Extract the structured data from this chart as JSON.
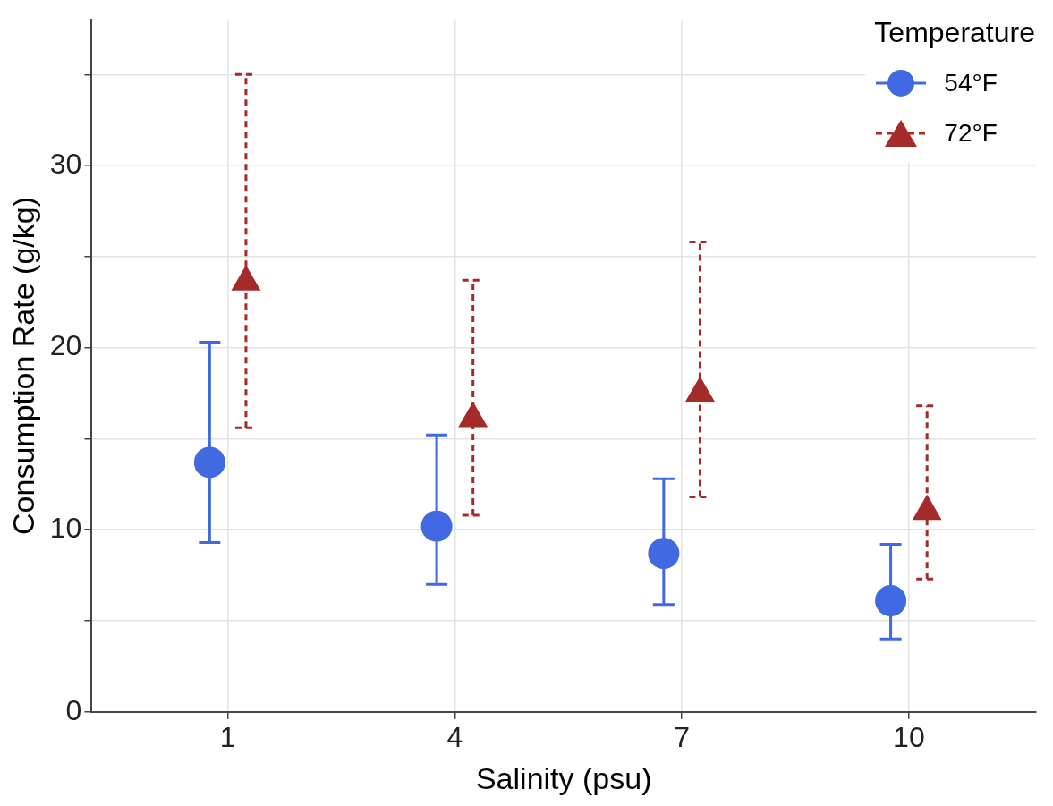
{
  "chart_data": {
    "type": "scatter",
    "xlabel": "Salinity (psu)",
    "ylabel": "Consumption Rate (g/kg)",
    "legend_title": "Temperature",
    "categories": [
      "1",
      "4",
      "7",
      "10"
    ],
    "ylim": [
      0,
      38
    ],
    "yticks": [
      0,
      {
        "value": 5,
        "label": null
      },
      10,
      {
        "value": 15,
        "label": null
      },
      20,
      {
        "value": 25,
        "label": null
      },
      30,
      {
        "value": 35,
        "label": null
      }
    ],
    "grid": true,
    "legend": "top right",
    "series": [
      {
        "name": "54°F",
        "color": "#4169e1",
        "marker": "circle",
        "line_style": "solid",
        "values": [
          13.7,
          10.2,
          8.7,
          6.1
        ],
        "errors": [
          [
            9.3,
            20.3
          ],
          [
            7.0,
            15.2
          ],
          [
            5.9,
            12.8
          ],
          [
            4.0,
            9.2
          ]
        ]
      },
      {
        "name": "72°F",
        "color": "#a52a2a",
        "marker": "triangle",
        "line_style": "dashed",
        "values": [
          23.6,
          16.1,
          17.5,
          11.0
        ],
        "errors": [
          [
            15.6,
            35.0
          ],
          [
            10.8,
            23.7
          ],
          [
            11.8,
            25.8
          ],
          [
            7.3,
            16.8
          ]
        ]
      }
    ]
  }
}
